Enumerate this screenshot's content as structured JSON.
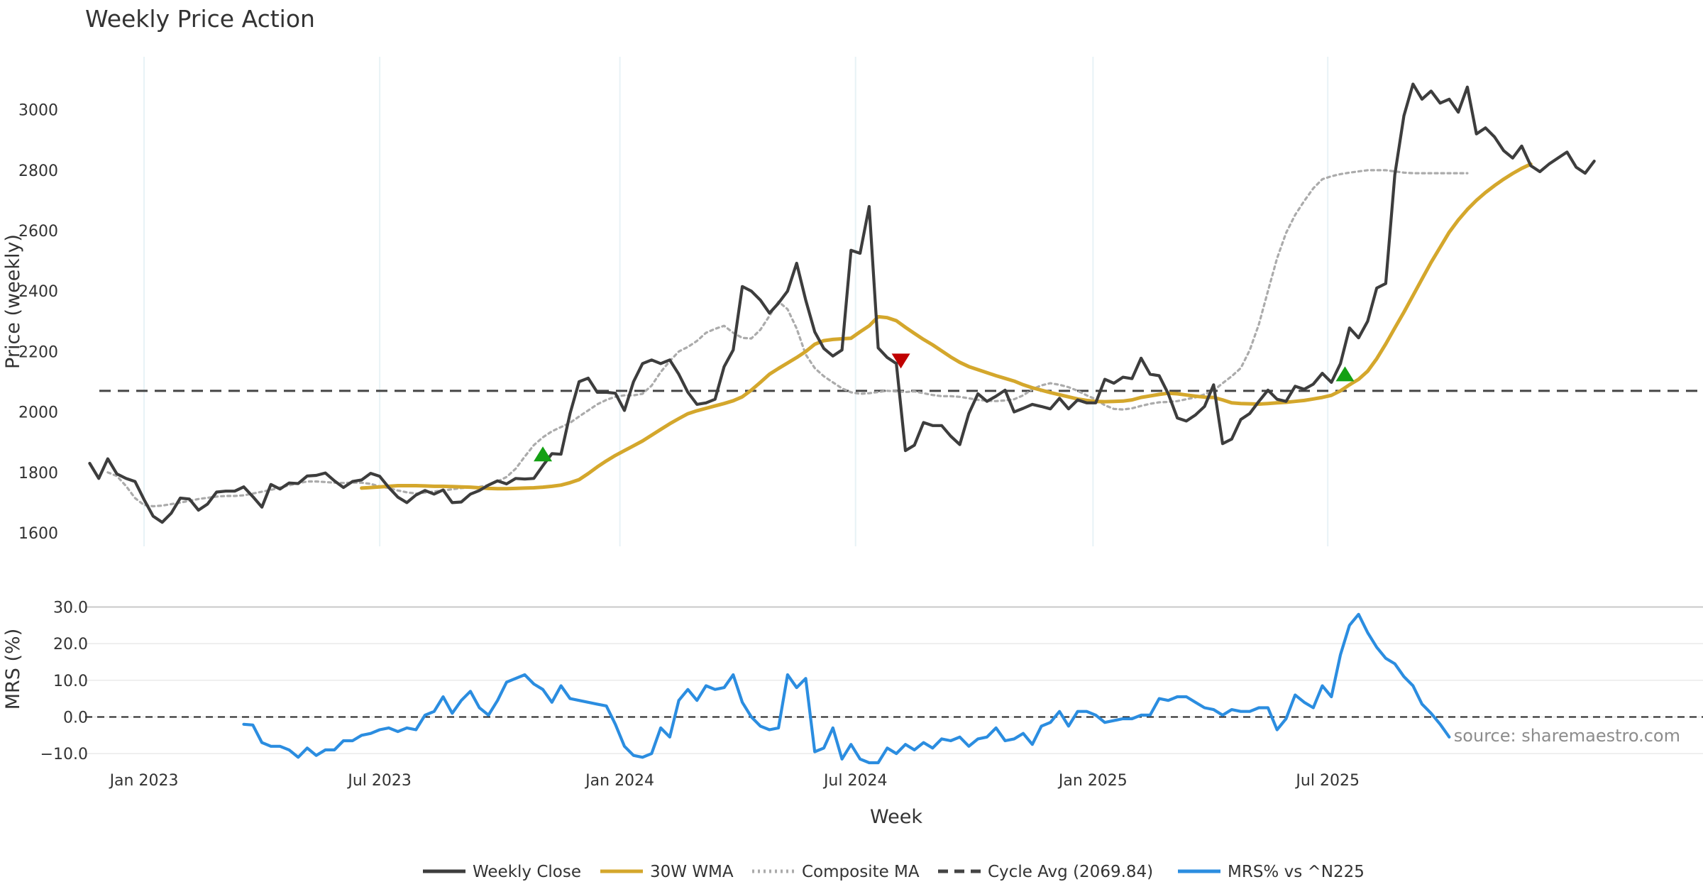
{
  "colors": {
    "close": "#3d3d3d",
    "wma": "#d4a72c",
    "composite": "#ababab",
    "cycle": "#444444",
    "mrs": "#2b8de0",
    "buy": "#14a014",
    "sell": "#c00000",
    "grid": "#e8f2f6"
  },
  "chart_data": {
    "type": "line",
    "title": "Weekly Price Action",
    "xlabel": "Week",
    "source": "source: sharemaestro.com",
    "x_ticks": [
      {
        "label": "Jan 2023",
        "week": 4
      },
      {
        "label": "Jul 2023",
        "week": 30
      },
      {
        "label": "Jan 2024",
        "week": 56.5
      },
      {
        "label": "Jul 2024",
        "week": 82.5
      },
      {
        "label": "Jan 2025",
        "week": 108.7
      },
      {
        "label": "Jul 2025",
        "week": 134.6
      }
    ],
    "x_range": [
      -2.5,
      176
    ],
    "price_panel": {
      "ylabel": "Price (weekly)",
      "ylim": [
        1560,
        3180
      ],
      "yticks": [
        1600,
        1800,
        2000,
        2200,
        2400,
        2600,
        2800,
        3000
      ],
      "cycle_avg": 2069.84,
      "series": [
        {
          "name": "Weekly Close",
          "key": "close",
          "start_week": -2,
          "values": [
            1830,
            1780,
            1845,
            1795,
            1780,
            1770,
            1710,
            1655,
            1635,
            1665,
            1715,
            1712,
            1675,
            1695,
            1735,
            1738,
            1738,
            1752,
            1720,
            1685,
            1760,
            1745,
            1765,
            1763,
            1788,
            1790,
            1798,
            1772,
            1750,
            1770,
            1775,
            1797,
            1787,
            1750,
            1718,
            1700,
            1725,
            1740,
            1728,
            1742,
            1700,
            1702,
            1728,
            1740,
            1758,
            1772,
            1762,
            1780,
            1778,
            1780,
            1822,
            1862,
            1860,
            1995,
            2100,
            2112,
            2065,
            2065,
            2062,
            2005,
            2100,
            2160,
            2172,
            2160,
            2172,
            2125,
            2065,
            2025,
            2030,
            2042,
            2150,
            2205,
            2415,
            2400,
            2370,
            2327,
            2360,
            2400,
            2492,
            2370,
            2265,
            2210,
            2185,
            2205,
            2535,
            2525,
            2680,
            2212,
            2180,
            2160,
            1872,
            1890,
            1965,
            1955,
            1955,
            1920,
            1892,
            1995,
            2060,
            2035,
            2052,
            2072,
            2000,
            2012,
            2025,
            2018,
            2010,
            2045,
            2010,
            2040,
            2030,
            2030,
            2108,
            2095,
            2115,
            2110,
            2178,
            2125,
            2120,
            2060,
            1980,
            1970,
            1990,
            2018,
            2090,
            1895,
            1910,
            1975,
            1995,
            2035,
            2072,
            2042,
            2035,
            2085,
            2075,
            2092,
            2128,
            2098,
            2160,
            2278,
            2245,
            2300,
            2410,
            2425,
            2785,
            2980,
            3085,
            3035,
            3062,
            3022,
            3035,
            2992,
            3075,
            2920,
            2940,
            2910,
            2865,
            2840,
            2880,
            2815,
            2795,
            2820,
            2840,
            2860,
            2810,
            2790,
            2830
          ]
        },
        {
          "name": "30W WMA",
          "key": "wma",
          "start_week": 28,
          "values": [
            1748,
            1750,
            1752,
            1754,
            1756,
            1756,
            1756,
            1755,
            1754,
            1754,
            1753,
            1752,
            1751,
            1749,
            1747,
            1746,
            1746,
            1747,
            1748,
            1749,
            1751,
            1754,
            1758,
            1766,
            1776,
            1796,
            1818,
            1838,
            1856,
            1872,
            1888,
            1904,
            1923,
            1942,
            1961,
            1978,
            1994,
            2004,
            2012,
            2020,
            2028,
            2037,
            2050,
            2072,
            2098,
            2125,
            2144,
            2162,
            2180,
            2200,
            2224,
            2236,
            2240,
            2242,
            2244,
            2265,
            2285,
            2315,
            2312,
            2302,
            2280,
            2260,
            2240,
            2222,
            2202,
            2182,
            2164,
            2150,
            2140,
            2130,
            2120,
            2111,
            2102,
            2090,
            2080,
            2072,
            2064,
            2057,
            2050,
            2043,
            2038,
            2035,
            2034,
            2035,
            2036,
            2040,
            2048,
            2053,
            2058,
            2062,
            2060,
            2056,
            2052,
            2049,
            2048,
            2040,
            2030,
            2028,
            2027,
            2026,
            2028,
            2030,
            2032,
            2035,
            2038,
            2043,
            2048,
            2055,
            2070,
            2090,
            2108,
            2135,
            2176,
            2225,
            2278,
            2330,
            2385,
            2440,
            2495,
            2545,
            2595,
            2635,
            2670,
            2700,
            2726,
            2749,
            2770,
            2789,
            2806,
            2820
          ]
        },
        {
          "name": "Composite MA",
          "key": "composite",
          "start_week": 0,
          "values": [
            1800,
            1788,
            1755,
            1715,
            1692,
            1688,
            1690,
            1695,
            1700,
            1706,
            1712,
            1716,
            1720,
            1722,
            1722,
            1724,
            1730,
            1736,
            1742,
            1750,
            1757,
            1764,
            1770,
            1770,
            1768,
            1766,
            1765,
            1766,
            1766,
            1762,
            1754,
            1748,
            1740,
            1734,
            1730,
            1733,
            1737,
            1740,
            1744,
            1748,
            1750,
            1752,
            1758,
            1770,
            1785,
            1812,
            1852,
            1890,
            1916,
            1936,
            1950,
            1964,
            1985,
            2005,
            2025,
            2040,
            2050,
            2055,
            2055,
            2060,
            2087,
            2132,
            2168,
            2200,
            2215,
            2235,
            2262,
            2275,
            2285,
            2262,
            2245,
            2243,
            2272,
            2318,
            2365,
            2340,
            2276,
            2190,
            2145,
            2118,
            2098,
            2078,
            2065,
            2060,
            2062,
            2066,
            2070,
            2068,
            2066,
            2068,
            2062,
            2056,
            2052,
            2052,
            2050,
            2045,
            2040,
            2037,
            2036,
            2038,
            2042,
            2055,
            2075,
            2088,
            2095,
            2090,
            2082,
            2070,
            2055,
            2042,
            2022,
            2010,
            2008,
            2012,
            2020,
            2027,
            2032,
            2033,
            2036,
            2042,
            2048,
            2058,
            2071,
            2095,
            2118,
            2145,
            2205,
            2290,
            2400,
            2508,
            2592,
            2652,
            2698,
            2740,
            2770,
            2780,
            2787,
            2792,
            2796,
            2800,
            2800,
            2800,
            2796,
            2792,
            2790,
            2790,
            2790,
            2790,
            2790,
            2790,
            2790
          ]
        }
      ],
      "markers": [
        {
          "type": "buy",
          "week": 48,
          "value": 1860
        },
        {
          "type": "sell",
          "week": 87.5,
          "value": 2172
        },
        {
          "type": "buy",
          "week": 136.5,
          "value": 2125
        }
      ]
    },
    "mrs_panel": {
      "ylabel": "MRS (%)",
      "ylim": [
        -12.5,
        33
      ],
      "yticks": [
        -10.0,
        0.0,
        10.0,
        20.0,
        30.0
      ],
      "ytick_labels": [
        "−10.0",
        "0.0",
        "10.0",
        "20.0",
        "30.0"
      ],
      "series": [
        {
          "name": "MRS% vs ^N225",
          "key": "mrs",
          "start_week": 15,
          "values": [
            -2,
            -2.2,
            -7,
            -8,
            -8,
            -9,
            -11,
            -8.5,
            -10.5,
            -9,
            -9,
            -6.5,
            -6.5,
            -5,
            -4.5,
            -3.5,
            -3,
            -4,
            -3,
            -3.5,
            0.5,
            1.5,
            5.5,
            1,
            4.5,
            7,
            2.5,
            0.5,
            4.5,
            9.5,
            10.5,
            11.5,
            9,
            7.5,
            4,
            8.5,
            5,
            4.5,
            4,
            3.5,
            3,
            -2,
            -8,
            -10.5,
            -11,
            -10,
            -3,
            -5.5,
            4.5,
            7.5,
            4.5,
            8.5,
            7.5,
            8,
            11.5,
            4,
            0,
            -2.5,
            -3.5,
            -3,
            11.5,
            8,
            10.5,
            -9.5,
            -8.5,
            -3,
            -11.5,
            -7.5,
            -11.5,
            -12.5,
            -12.5,
            -8.5,
            -10,
            -7.5,
            -9,
            -7,
            -8.5,
            -6,
            -6.5,
            -5.5,
            -8,
            -6,
            -5.5,
            -3,
            -6.5,
            -6,
            -4.5,
            -7.5,
            -2.5,
            -1.5,
            1.5,
            -2.5,
            1.5,
            1.5,
            0.5,
            -1.5,
            -1,
            -0.5,
            -0.5,
            0.5,
            0.5,
            5,
            4.5,
            5.5,
            5.5,
            4,
            2.5,
            2,
            0.5,
            2,
            1.5,
            1.5,
            2.5,
            2.5,
            -3.5,
            -0.5,
            6,
            4,
            2.5,
            8.5,
            5.5,
            17,
            25,
            28,
            23,
            19,
            16,
            14.5,
            11,
            8.5,
            3.5,
            1,
            -2,
            -5.5
          ]
        }
      ]
    },
    "legend": [
      {
        "label": "Weekly Close",
        "key": "close",
        "style": "solid"
      },
      {
        "label": "30W WMA",
        "key": "wma",
        "style": "solid"
      },
      {
        "label": "Composite MA",
        "key": "composite",
        "style": "dotted"
      },
      {
        "label": "Cycle Avg (2069.84)",
        "key": "cycle",
        "style": "dashed"
      },
      {
        "label": "MRS% vs ^N225",
        "key": "mrs",
        "style": "solid"
      }
    ]
  }
}
